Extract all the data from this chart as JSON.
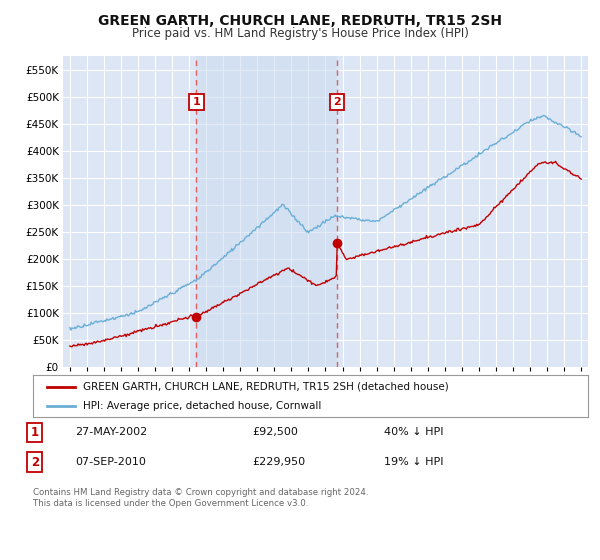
{
  "title": "GREEN GARTH, CHURCH LANE, REDRUTH, TR15 2SH",
  "subtitle": "Price paid vs. HM Land Registry's House Price Index (HPI)",
  "background_color": "#ffffff",
  "plot_bg_color": "#dce6f5",
  "grid_color": "#ffffff",
  "shade_color": "#ccdcf0",
  "legend_line1": "GREEN GARTH, CHURCH LANE, REDRUTH, TR15 2SH (detached house)",
  "legend_line2": "HPI: Average price, detached house, Cornwall",
  "transaction1_date": "27-MAY-2002",
  "transaction1_price": "£92,500",
  "transaction1_hpi": "40% ↓ HPI",
  "transaction2_date": "07-SEP-2010",
  "transaction2_price": "£229,950",
  "transaction2_hpi": "19% ↓ HPI",
  "footer": "Contains HM Land Registry data © Crown copyright and database right 2024.\nThis data is licensed under the Open Government Licence v3.0.",
  "hpi_color": "#6baed6",
  "price_color": "#c00000",
  "vline_color": "#e06060",
  "marker1_x": 2002.42,
  "marker1_y": 92500,
  "marker2_x": 2010.68,
  "marker2_y": 229950,
  "ylim": [
    0,
    575000
  ],
  "xlim": [
    1994.6,
    2025.4
  ],
  "yticks": [
    0,
    50000,
    100000,
    150000,
    200000,
    250000,
    300000,
    350000,
    400000,
    450000,
    500000,
    550000
  ],
  "xticks": [
    1995,
    1996,
    1997,
    1998,
    1999,
    2000,
    2001,
    2002,
    2003,
    2004,
    2005,
    2006,
    2007,
    2008,
    2009,
    2010,
    2011,
    2012,
    2013,
    2014,
    2015,
    2016,
    2017,
    2018,
    2019,
    2020,
    2021,
    2022,
    2023,
    2024,
    2025
  ]
}
